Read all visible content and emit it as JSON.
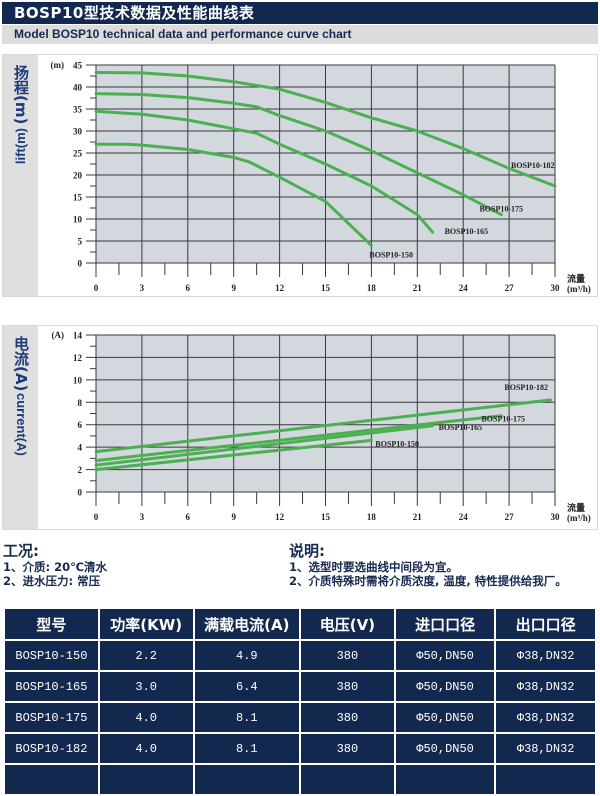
{
  "header": {
    "title": "BOSP10型技术数据及性能曲线表",
    "subtitle": "Model BOSP10 technical data and performance curve chart"
  },
  "head_panel": {
    "side_label_cn": "扬程(m)",
    "side_label_en": "lift(m)"
  },
  "current_panel": {
    "side_label_cn": "电流(A)",
    "side_label_en": "current(A)"
  },
  "chart_data": [
    {
      "type": "line",
      "title": "Head vs Flow",
      "xlabel": "流量 (m³/h)",
      "ylabel": "扬程(m) lift(m)",
      "y_unit_label": "(m)",
      "xlim": [
        0,
        30
      ],
      "ylim": [
        0,
        45
      ],
      "x_ticks": [
        0,
        3,
        6,
        9,
        12,
        15,
        18,
        21,
        24,
        27,
        30
      ],
      "y_ticks": [
        0,
        5,
        10,
        15,
        20,
        25,
        30,
        35,
        40,
        45
      ],
      "grid": true,
      "line_color": "#4caf50",
      "series": [
        {
          "name": "BOSP10-182",
          "points": [
            [
              0,
              43.3
            ],
            [
              3,
              43.2
            ],
            [
              6,
              42.5
            ],
            [
              9,
              41.2
            ],
            [
              12,
              39.5
            ],
            [
              15,
              36.5
            ],
            [
              18,
              33
            ],
            [
              21,
              30
            ],
            [
              24,
              26
            ],
            [
              27,
              21.5
            ],
            [
              30,
              17.5
            ]
          ]
        },
        {
          "name": "BOSP10-175",
          "points": [
            [
              0,
              38.5
            ],
            [
              3,
              38.3
            ],
            [
              6,
              37.6
            ],
            [
              9,
              36.3
            ],
            [
              10.5,
              35.5
            ],
            [
              12,
              33.5
            ],
            [
              15,
              30
            ],
            [
              18,
              25.5
            ],
            [
              21,
              20.5
            ],
            [
              24,
              15.5
            ],
            [
              26.5,
              11
            ]
          ]
        },
        {
          "name": "BOSP10-165",
          "points": [
            [
              0,
              34.5
            ],
            [
              3,
              33.8
            ],
            [
              6,
              32.5
            ],
            [
              9,
              30.5
            ],
            [
              10.5,
              29.5
            ],
            [
              12,
              27
            ],
            [
              15,
              22.5
            ],
            [
              18,
              17.5
            ],
            [
              21,
              11
            ],
            [
              22,
              7
            ]
          ]
        },
        {
          "name": "BOSP10-150",
          "points": [
            [
              0,
              27
            ],
            [
              2,
              27
            ],
            [
              3,
              26.8
            ],
            [
              6,
              25.8
            ],
            [
              9,
              24
            ],
            [
              10,
              23
            ],
            [
              12,
              19.5
            ],
            [
              15,
              14
            ],
            [
              18,
              4
            ]
          ]
        }
      ]
    },
    {
      "type": "line",
      "title": "Current vs Flow",
      "xlabel": "流量 (m³/h)",
      "ylabel": "电流(A) current(A)",
      "y_unit_label": "(A)",
      "xlim": [
        0,
        30
      ],
      "ylim": [
        0,
        14
      ],
      "x_ticks": [
        0,
        3,
        6,
        9,
        12,
        15,
        18,
        21,
        24,
        27,
        30
      ],
      "y_ticks": [
        0,
        2,
        4,
        6,
        8,
        10,
        12,
        14
      ],
      "grid": true,
      "line_color": "#4caf50",
      "series": [
        {
          "name": "BOSP10-182",
          "points": [
            [
              0,
              3.6
            ],
            [
              29.7,
              8.2
            ]
          ]
        },
        {
          "name": "BOSP10-175",
          "points": [
            [
              0,
              2.8
            ],
            [
              26.5,
              6.8
            ]
          ]
        },
        {
          "name": "BOSP10-165",
          "points": [
            [
              0,
              2.4
            ],
            [
              22,
              5.9
            ]
          ]
        },
        {
          "name": "BOSP10-150",
          "points": [
            [
              0,
              2.0
            ],
            [
              18,
              4.6
            ]
          ]
        }
      ]
    }
  ],
  "conditions": {
    "title": "工况:",
    "items": [
      "1、介质: 20℃清水",
      "2、进水压力: 常压"
    ]
  },
  "notes": {
    "title": "说明:",
    "items": [
      "1、选型时要选曲线中间段为宜。",
      "2、介质特殊时需将介质浓度, 温度, 特性提供给我厂。"
    ]
  },
  "table": {
    "headers": [
      "型号",
      "功率(KW)",
      "满载电流(A)",
      "电压(V)",
      "进口口径",
      "出口口径"
    ],
    "rows": [
      [
        "BOSP10-150",
        "2.2",
        "4.9",
        "380",
        "Φ50,DN50",
        "Φ38,DN32"
      ],
      [
        "BOSP10-165",
        "3.0",
        "6.4",
        "380",
        "Φ50,DN50",
        "Φ38,DN32"
      ],
      [
        "BOSP10-175",
        "4.0",
        "8.1",
        "380",
        "Φ50,DN50",
        "Φ38,DN32"
      ],
      [
        "BOSP10-182",
        "4.0",
        "8.1",
        "380",
        "Φ50,DN50",
        "Φ38,DN32"
      ],
      [
        "",
        "",
        "",
        "",
        "",
        ""
      ]
    ]
  }
}
